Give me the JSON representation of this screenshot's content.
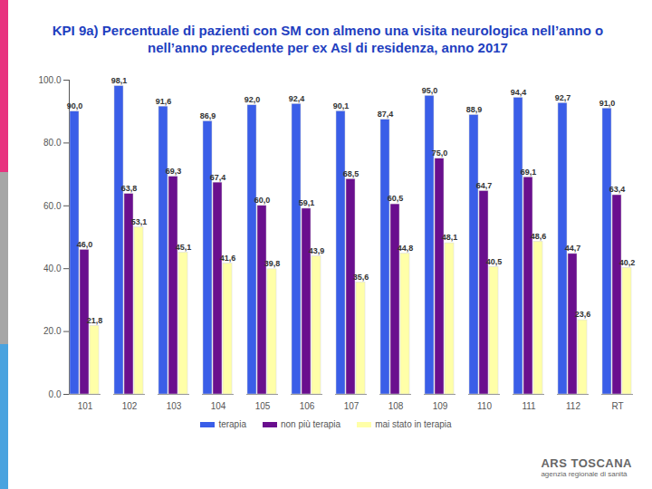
{
  "chart_data": {
    "type": "bar",
    "title": "KPI 9a) Percentuale di pazienti con SM con almeno una visita neurologica nell’anno o nell’anno precedente per ex Asl di residenza, anno 2017",
    "categories": [
      "101",
      "102",
      "103",
      "104",
      "105",
      "106",
      "107",
      "108",
      "109",
      "110",
      "111",
      "112",
      "RT"
    ],
    "series": [
      {
        "name": "terapia",
        "color": "#3a5ee8",
        "values": [
          90.0,
          98.1,
          91.6,
          86.9,
          92.0,
          92.4,
          90.1,
          87.4,
          95.0,
          88.9,
          94.4,
          92.7,
          91.0
        ],
        "value_labels": [
          "90,0",
          "98,1",
          "91,6",
          "86,9",
          "92,0",
          "92,4",
          "90,1",
          "87,4",
          "95,0",
          "88,9",
          "94,4",
          "92,7",
          "91,0"
        ]
      },
      {
        "name": "non più terapia",
        "color": "#6a0f8e",
        "values": [
          46.0,
          63.8,
          69.3,
          67.4,
          60.0,
          59.1,
          68.5,
          60.5,
          75.0,
          64.7,
          69.1,
          44.7,
          63.4
        ],
        "value_labels": [
          "46,0",
          "63,8",
          "69,3",
          "67,4",
          "60,0",
          "59,1",
          "68,5",
          "60,5",
          "75,0",
          "64,7",
          "69,1",
          "44,7",
          "63,4"
        ]
      },
      {
        "name": "mai stato in terapia",
        "color": "#ffffa8",
        "values": [
          21.8,
          53.1,
          45.1,
          41.6,
          39.8,
          43.9,
          35.6,
          44.8,
          48.1,
          40.5,
          48.6,
          23.6,
          40.2
        ],
        "value_labels": [
          "21,8",
          "53,1",
          "45,1",
          "41,6",
          "39,8",
          "43,9",
          "35,6",
          "44,8",
          "48,1",
          "40,5",
          "48,6",
          "23,6",
          "40,2"
        ]
      }
    ],
    "ylim": [
      0,
      100
    ],
    "yticks": [
      {
        "value": 0,
        "label": "0.0"
      },
      {
        "value": 20,
        "label": "20.0"
      },
      {
        "value": 40,
        "label": "40.0"
      },
      {
        "value": 60,
        "label": "60.0"
      },
      {
        "value": 80,
        "label": "80.0"
      },
      {
        "value": 100,
        "label": "100.0"
      }
    ],
    "grid": false,
    "data_labels": true,
    "legend": "bottom",
    "annotations": [
      "ARS TOSCANA",
      "agenzia regionale di sanità"
    ]
  }
}
